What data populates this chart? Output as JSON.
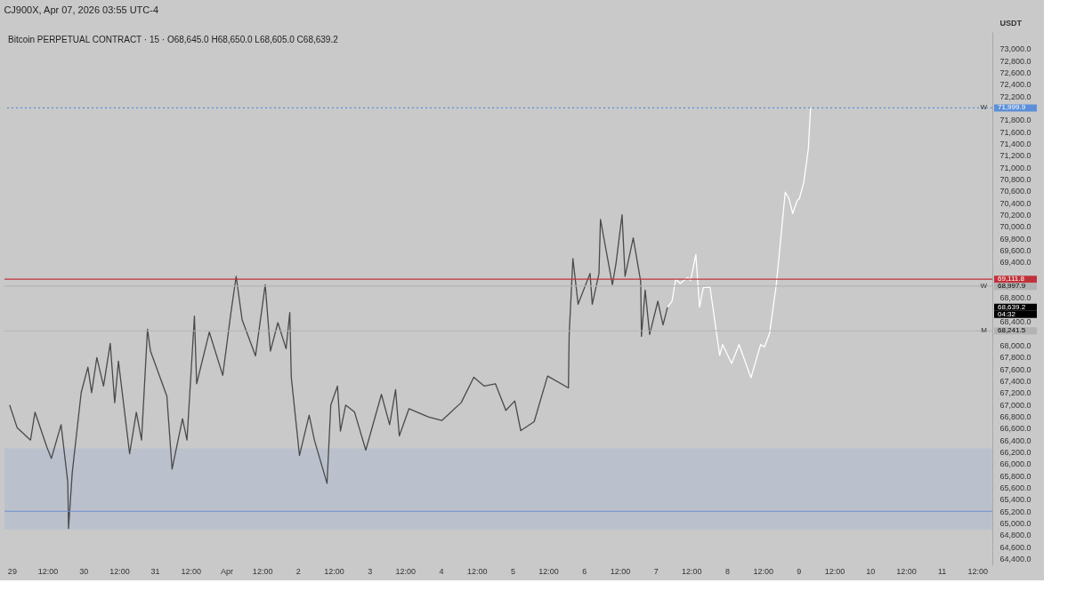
{
  "chart_data": {
    "type": "line",
    "title": "Bitcoin PERPETUAL CONTRACT · 15 · O68,645.0  H68,650.0  L68,605.0  C68,639.2",
    "ylabel": "USDT",
    "annotations": [
      "CJ900X, Apr 07, 2026 03:55 UTC-4",
      {
        "text": "W",
        "y": 71999.9
      },
      {
        "text": "W",
        "y": 68997.9
      },
      {
        "text": "M",
        "y": 68241.5
      },
      "68,639.2",
      "04:32"
    ],
    "xlim": [
      "2026-03-28T21:30",
      "2026-04-11T17:00"
    ],
    "ylim": [
      64290,
      73280
    ],
    "xticks": [
      {
        "value": "2026-03-29T00:00",
        "label": "29"
      },
      {
        "value": "2026-03-29T12:00",
        "label": "12:00"
      },
      {
        "value": "2026-03-30T00:00",
        "label": "30"
      },
      {
        "value": "2026-03-30T12:00",
        "label": "12:00"
      },
      {
        "value": "2026-03-31T00:00",
        "label": "31"
      },
      {
        "value": "2026-03-31T12:00",
        "label": "12:00"
      },
      {
        "value": "2026-04-01T00:00",
        "label": "Apr"
      },
      {
        "value": "2026-04-01T12:00",
        "label": "12:00"
      },
      {
        "value": "2026-04-02T00:00",
        "label": "2"
      },
      {
        "value": "2026-04-02T12:00",
        "label": "12:00"
      },
      {
        "value": "2026-04-03T00:00",
        "label": "3"
      },
      {
        "value": "2026-04-03T12:00",
        "label": "12:00"
      },
      {
        "value": "2026-04-04T00:00",
        "label": "4"
      },
      {
        "value": "2026-04-04T12:00",
        "label": "12:00"
      },
      {
        "value": "2026-04-05T00:00",
        "label": "5"
      },
      {
        "value": "2026-04-05T12:00",
        "label": "12:00"
      },
      {
        "value": "2026-04-06T00:00",
        "label": "6"
      },
      {
        "value": "2026-04-06T12:00",
        "label": "12:00"
      },
      {
        "value": "2026-04-07T00:00",
        "label": "7"
      },
      {
        "value": "2026-04-07T12:00",
        "label": "12:00"
      },
      {
        "value": "2026-04-08T00:00",
        "label": "8"
      },
      {
        "value": "2026-04-08T12:00",
        "label": "12:00"
      },
      {
        "value": "2026-04-09T00:00",
        "label": "9"
      },
      {
        "value": "2026-04-09T12:00",
        "label": "12:00"
      },
      {
        "value": "2026-04-10T00:00",
        "label": "10"
      },
      {
        "value": "2026-04-10T12:00",
        "label": "12:00"
      },
      {
        "value": "2026-04-11T00:00",
        "label": "11"
      },
      {
        "value": "2026-04-11T12:00",
        "label": "12:00"
      }
    ],
    "yticks": [
      {
        "value": 64400,
        "label": "64,400.0"
      },
      {
        "value": 64600,
        "label": "64,600.0"
      },
      {
        "value": 64800,
        "label": "64,800.0"
      },
      {
        "value": 65000,
        "label": "65,000.0"
      },
      {
        "value": 65200,
        "label": "65,200.0"
      },
      {
        "value": 65400,
        "label": "65,400.0"
      },
      {
        "value": 65600,
        "label": "65,600.0"
      },
      {
        "value": 65800,
        "label": "65,800.0"
      },
      {
        "value": 66000,
        "label": "66,000.0"
      },
      {
        "value": 66200,
        "label": "66,200.0"
      },
      {
        "value": 66400,
        "label": "66,400.0"
      },
      {
        "value": 66600,
        "label": "66,600.0"
      },
      {
        "value": 66800,
        "label": "66,800.0"
      },
      {
        "value": 67000,
        "label": "67,000.0"
      },
      {
        "value": 67200,
        "label": "67,200.0"
      },
      {
        "value": 67400,
        "label": "67,400.0"
      },
      {
        "value": 67600,
        "label": "67,600.0"
      },
      {
        "value": 67800,
        "label": "67,800.0"
      },
      {
        "value": 68000,
        "label": "68,000.0"
      },
      {
        "value": 68400,
        "label": "68,400.0"
      },
      {
        "value": 68800,
        "label": "68,800.0"
      },
      {
        "value": 69000,
        "label": null
      },
      {
        "value": 69400,
        "label": "69,400.0"
      },
      {
        "value": 69600,
        "label": "69,600.0"
      },
      {
        "value": 69800,
        "label": "69,800.0"
      },
      {
        "value": 70000,
        "label": "70,000.0"
      },
      {
        "value": 70200,
        "label": "70,200.0"
      },
      {
        "value": 70400,
        "label": "70,400.0"
      },
      {
        "value": 70600,
        "label": "70,600.0"
      },
      {
        "value": 70800,
        "label": "70,800.0"
      },
      {
        "value": 71000,
        "label": "71,000.0"
      },
      {
        "value": 71200,
        "label": "71,200.0"
      },
      {
        "value": 71400,
        "label": "71,400.0"
      },
      {
        "value": 71600,
        "label": "71,600.0"
      },
      {
        "value": 71800,
        "label": "71,800.0"
      },
      {
        "value": 72000,
        "label": null
      },
      {
        "value": 72200,
        "label": "72,200.0"
      },
      {
        "value": 72400,
        "label": "72,400.0"
      },
      {
        "value": 72600,
        "label": "72,600.0"
      },
      {
        "value": 72800,
        "label": "72,800.0"
      },
      {
        "value": 73000,
        "label": "73,000.0"
      }
    ],
    "bands": [
      {
        "axis": "y",
        "from": 64890,
        "to": 66260,
        "color": "#b9c0cc"
      }
    ],
    "ref_lines": [
      {
        "axis": "y",
        "value": 71999.9,
        "label": "71,999.9",
        "color": "#5b8fd9",
        "line_style": "dotted"
      },
      {
        "axis": "y",
        "value": 69111.8,
        "label": "69,111.8",
        "color": "#c0323a",
        "line_style": "solid"
      },
      {
        "axis": "y",
        "value": 68997.9,
        "label": "68,997.9",
        "color": "#b3b3b3",
        "line_style": "solid"
      },
      {
        "axis": "y",
        "value": 68241.5,
        "label": "68,241.5",
        "color": "#b3b3b3",
        "line_style": "solid"
      },
      {
        "axis": "y",
        "value": 65200,
        "color": "#6f8fd0",
        "line_style": "solid"
      }
    ],
    "series": [
      {
        "color": "#4a4a4a",
        "x": [
          "2026-03-28T23:15",
          "2026-03-29T01:45",
          "2026-03-29T06:15",
          "2026-03-29T07:45",
          "2026-03-29T11:45",
          "2026-03-29T13:15",
          "2026-03-29T16:30",
          "2026-03-29T18:45",
          "2026-03-29T19:00",
          "2026-03-29T20:15",
          "2026-03-29T23:15",
          "2026-03-30T01:30",
          "2026-03-30T02:45",
          "2026-03-30T04:30",
          "2026-03-30T06:45",
          "2026-03-30T09:00",
          "2026-03-30T10:30",
          "2026-03-30T11:45",
          "2026-03-30T15:30",
          "2026-03-30T17:45",
          "2026-03-30T19:30",
          "2026-03-30T21:30",
          "2026-03-30T22:30",
          "2026-03-31T04:00",
          "2026-03-31T05:45",
          "2026-03-31T09:15",
          "2026-03-31T10:45",
          "2026-03-31T13:15",
          "2026-03-31T14:00",
          "2026-03-31T18:15",
          "2026-03-31T22:45",
          "2026-04-01T01:30",
          "2026-04-01T03:15",
          "2026-04-01T05:15",
          "2026-04-01T09:45",
          "2026-04-01T13:00",
          "2026-04-01T14:45",
          "2026-04-01T17:15",
          "2026-04-01T20:00",
          "2026-04-01T21:15",
          "2026-04-01T21:45",
          "2026-04-02T00:30",
          "2026-04-02T03:45",
          "2026-04-02T05:30",
          "2026-04-02T09:45",
          "2026-04-02T11:00",
          "2026-04-02T13:15",
          "2026-04-02T14:15",
          "2026-04-02T16:00",
          "2026-04-02T19:00",
          "2026-04-02T22:45",
          "2026-04-03T04:00",
          "2026-04-03T06:45",
          "2026-04-03T08:45",
          "2026-04-03T10:00",
          "2026-04-03T13:15",
          "2026-04-03T19:45",
          "2026-04-04T00:15",
          "2026-04-04T06:45",
          "2026-04-04T11:00",
          "2026-04-04T14:30",
          "2026-04-04T18:15",
          "2026-04-04T21:45",
          "2026-04-05T00:45",
          "2026-04-05T02:45",
          "2026-04-05T07:15",
          "2026-04-05T11:45",
          "2026-04-05T18:45",
          "2026-04-05T19:00",
          "2026-04-05T20:15",
          "2026-04-05T22:00",
          "2026-04-06T02:00",
          "2026-04-06T02:45",
          "2026-04-06T05:00",
          "2026-04-06T05:30",
          "2026-04-06T09:30",
          "2026-04-06T10:45",
          "2026-04-06T12:45",
          "2026-04-06T13:45",
          "2026-04-06T16:30",
          "2026-04-06T19:00",
          "2026-04-06T19:15",
          "2026-04-06T20:30",
          "2026-04-06T22:00",
          "2026-04-07T00:45",
          "2026-04-07T02:30",
          "2026-04-07T04:00"
        ],
        "values": [
          66990,
          66610,
          66400,
          66870,
          66280,
          66090,
          66660,
          65690,
          64910,
          65850,
          67200,
          67630,
          67200,
          67790,
          67310,
          68030,
          67030,
          67730,
          66170,
          66870,
          66400,
          68270,
          67900,
          67140,
          65910,
          66760,
          66400,
          68490,
          67350,
          68220,
          67490,
          68550,
          69160,
          68430,
          67820,
          69020,
          67900,
          68380,
          67940,
          68550,
          67460,
          66140,
          66820,
          66400,
          65670,
          66990,
          67310,
          66550,
          66990,
          66870,
          66230,
          67170,
          66660,
          67250,
          66470,
          66930,
          66790,
          66730,
          67030,
          67460,
          67310,
          67350,
          66900,
          67060,
          66560,
          66710,
          67480,
          67280,
          68180,
          69460,
          68690,
          69210,
          68690,
          69210,
          70120,
          69020,
          69390,
          70200,
          69160,
          69810,
          69070,
          68150,
          68930,
          68180,
          68740,
          68340,
          68640
        ]
      },
      {
        "color": "#ffffff",
        "x": [
          "2026-04-07T04:00",
          "2026-04-07T05:30",
          "2026-04-07T06:45",
          "2026-04-07T08:15",
          "2026-04-07T10:45",
          "2026-04-07T11:45",
          "2026-04-07T13:30",
          "2026-04-07T14:45",
          "2026-04-07T16:00",
          "2026-04-07T18:15",
          "2026-04-07T21:30",
          "2026-04-07T22:30",
          "2026-04-08T01:30",
          "2026-04-08T04:00",
          "2026-04-08T08:00",
          "2026-04-08T11:15",
          "2026-04-08T12:30",
          "2026-04-08T14:15",
          "2026-04-08T16:30",
          "2026-04-08T19:30",
          "2026-04-08T20:45",
          "2026-04-08T22:00",
          "2026-04-08T23:30",
          "2026-04-09T00:15",
          "2026-04-09T01:45",
          "2026-04-09T03:15",
          "2026-04-09T04:00"
        ],
        "values": [
          68640,
          68740,
          69110,
          69040,
          69140,
          69090,
          69530,
          68640,
          68970,
          68980,
          67830,
          68010,
          67690,
          68010,
          67450,
          68010,
          67970,
          68200,
          69020,
          70580,
          70470,
          70220,
          70440,
          70470,
          70750,
          71310,
          72000
        ]
      }
    ]
  }
}
